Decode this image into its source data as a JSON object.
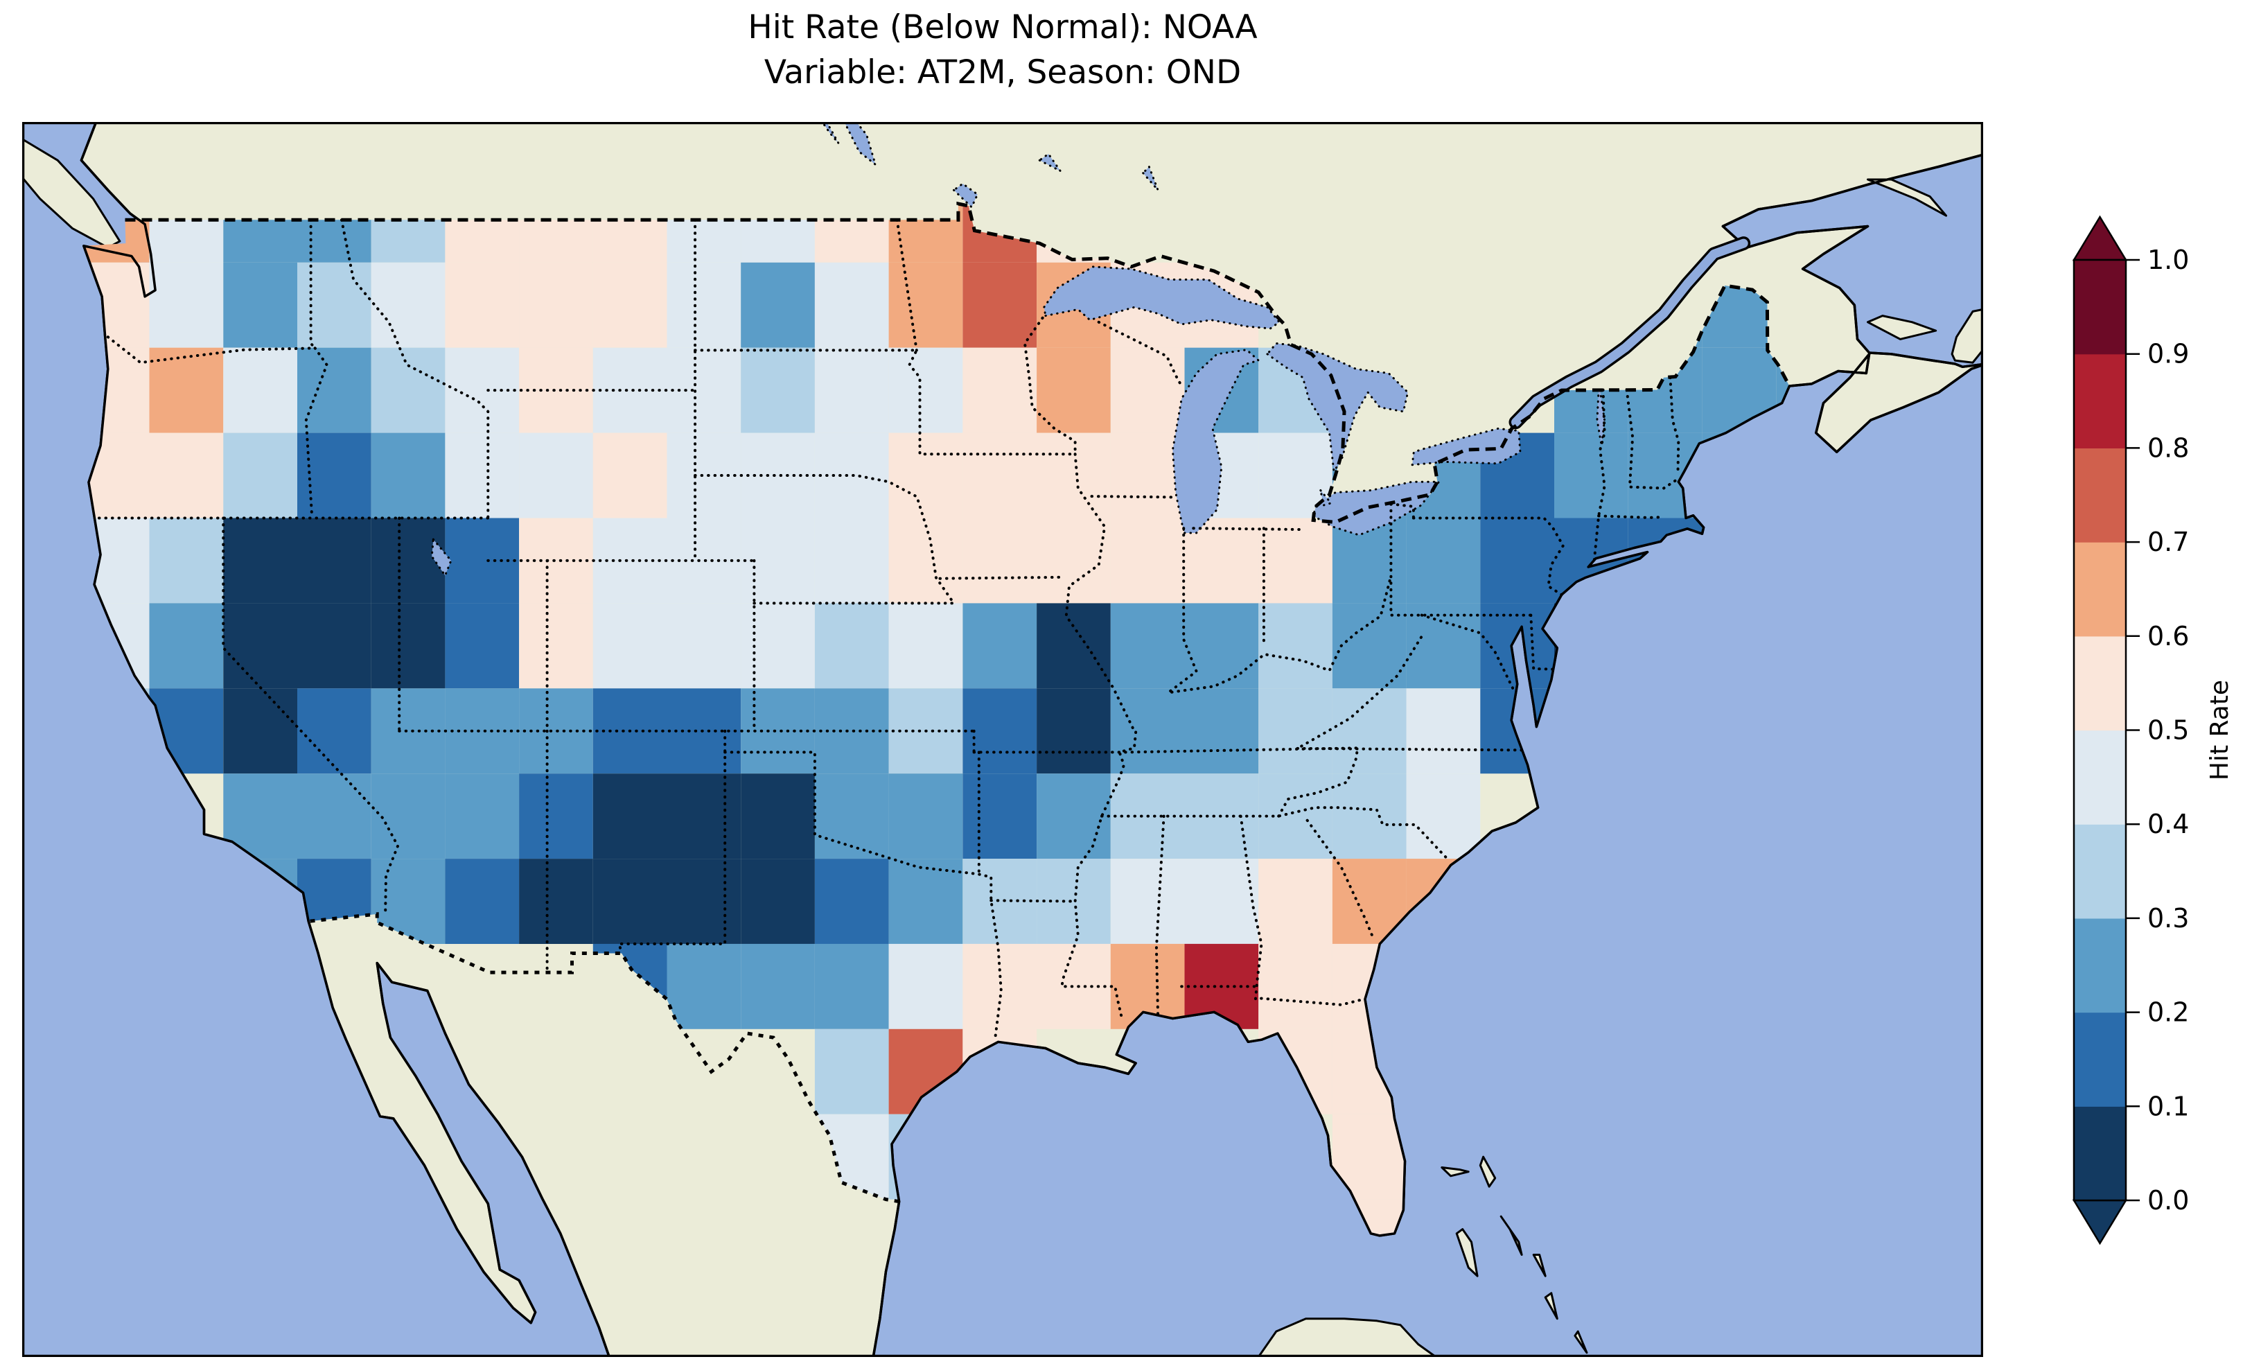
{
  "title": {
    "line1": "Hit Rate (Below Normal): NOAA",
    "line2": "Variable: AT2M, Season: OND"
  },
  "colorbar": {
    "label": "Hit Rate",
    "tick_labels": [
      "0.0",
      "0.1",
      "0.2",
      "0.3",
      "0.4",
      "0.5",
      "0.6",
      "0.7",
      "0.8",
      "0.9",
      "1.0"
    ]
  },
  "map_style": {
    "background": "#ffffff",
    "ocean": "#99b3e2",
    "land": "#ebecd8",
    "lake": "#8fabdd",
    "coastline": "#000000",
    "border": "#000000",
    "frame": "#000000"
  },
  "chart_data": {
    "type": "heatmap",
    "title": "Hit Rate (Below Normal): NOAA",
    "subtitle": "Variable: AT2M, Season: OND",
    "source": "NOAA",
    "variable": "AT2M",
    "season": "OND",
    "colorbar_label": "Hit Rate",
    "value_range": [
      0.0,
      1.0
    ],
    "bin_boundaries": [
      0.0,
      0.1,
      0.2,
      0.3,
      0.4,
      0.5,
      0.6,
      0.7,
      0.8,
      0.9,
      1.0
    ],
    "bin_colors": [
      "#133a61",
      "#2a6cac",
      "#5b9dc8",
      "#b2d2e7",
      "#dfe9f1",
      "#fae6da",
      "#f2aa80",
      "#d0604d",
      "#b02030",
      "#6c0a26"
    ],
    "under_color": "#133a61",
    "over_color": "#6c0a26",
    "legend_position": "right",
    "region": "Contiguous United States",
    "grid": {
      "lon_start": -125.0,
      "lon_step": 2.5,
      "lat_start": 50.0,
      "lat_step": -2.0,
      "cols": 24,
      "rows": 13
    },
    "values": [
      [
        0.65,
        0.45,
        0.25,
        0.25,
        0.35,
        0.55,
        0.55,
        0.55,
        0.45,
        0.45,
        0.55,
        0.65,
        0.75,
        0.55,
        null,
        null,
        null,
        null,
        null,
        null,
        null,
        null,
        null,
        null
      ],
      [
        0.55,
        0.45,
        0.25,
        0.35,
        0.45,
        0.55,
        0.55,
        0.55,
        0.45,
        0.25,
        0.45,
        0.65,
        0.75,
        0.65,
        0.55,
        0.55,
        null,
        null,
        null,
        null,
        null,
        0.25,
        0.25,
        null
      ],
      [
        0.55,
        0.65,
        0.45,
        0.25,
        0.35,
        0.45,
        0.55,
        0.45,
        0.45,
        0.35,
        0.45,
        0.45,
        0.55,
        0.65,
        0.55,
        0.25,
        0.35,
        null,
        null,
        null,
        0.25,
        0.25,
        0.25,
        0.25
      ],
      [
        0.55,
        0.55,
        0.35,
        0.15,
        0.25,
        0.45,
        0.45,
        0.55,
        0.45,
        0.45,
        0.45,
        0.55,
        0.55,
        0.55,
        0.55,
        0.45,
        0.45,
        0.25,
        0.25,
        0.15,
        0.25,
        0.25,
        0.25,
        null
      ],
      [
        0.45,
        0.35,
        0.05,
        0.05,
        0.05,
        0.15,
        0.55,
        0.45,
        0.45,
        0.45,
        0.45,
        0.55,
        0.55,
        0.55,
        0.55,
        0.55,
        0.55,
        0.25,
        0.25,
        0.15,
        0.15,
        0.15,
        null,
        null
      ],
      [
        0.45,
        0.25,
        0.05,
        0.05,
        0.05,
        0.15,
        0.55,
        0.45,
        0.45,
        0.45,
        0.35,
        0.45,
        0.25,
        0.05,
        0.25,
        0.25,
        0.35,
        0.25,
        0.25,
        0.15,
        0.05,
        null,
        null,
        null
      ],
      [
        0.35,
        0.15,
        0.05,
        0.15,
        0.25,
        0.25,
        0.25,
        0.15,
        0.15,
        0.25,
        0.25,
        0.35,
        0.15,
        0.05,
        0.25,
        0.25,
        0.35,
        0.35,
        0.45,
        0.15,
        null,
        null,
        null,
        null
      ],
      [
        null,
        null,
        0.25,
        0.25,
        0.25,
        0.25,
        0.15,
        0.05,
        0.05,
        0.05,
        0.25,
        0.25,
        0.15,
        0.25,
        0.35,
        0.35,
        0.35,
        0.35,
        0.45,
        null,
        null,
        null,
        null,
        null
      ],
      [
        null,
        null,
        0.25,
        0.15,
        0.25,
        0.15,
        0.05,
        0.05,
        0.05,
        0.05,
        0.15,
        0.25,
        0.35,
        0.35,
        0.45,
        0.45,
        0.55,
        0.65,
        0.65,
        null,
        null,
        null,
        null,
        null
      ],
      [
        null,
        null,
        null,
        null,
        null,
        null,
        null,
        0.15,
        0.25,
        0.25,
        0.25,
        0.45,
        0.55,
        0.55,
        0.65,
        0.85,
        0.55,
        0.55,
        0.65,
        null,
        null,
        null,
        null,
        null
      ],
      [
        null,
        null,
        null,
        null,
        null,
        null,
        null,
        null,
        null,
        null,
        0.35,
        0.75,
        0.55,
        null,
        null,
        null,
        0.55,
        0.55,
        0.55,
        null,
        null,
        null,
        null,
        null
      ],
      [
        null,
        null,
        null,
        null,
        null,
        null,
        null,
        null,
        null,
        null,
        0.45,
        0.35,
        null,
        null,
        null,
        null,
        null,
        0.55,
        0.55,
        null,
        null,
        null,
        null,
        null
      ],
      [
        null,
        null,
        null,
        null,
        null,
        null,
        null,
        null,
        null,
        null,
        null,
        null,
        null,
        null,
        null,
        null,
        null,
        0.55,
        0.55,
        null,
        null,
        null,
        null,
        null
      ]
    ]
  }
}
